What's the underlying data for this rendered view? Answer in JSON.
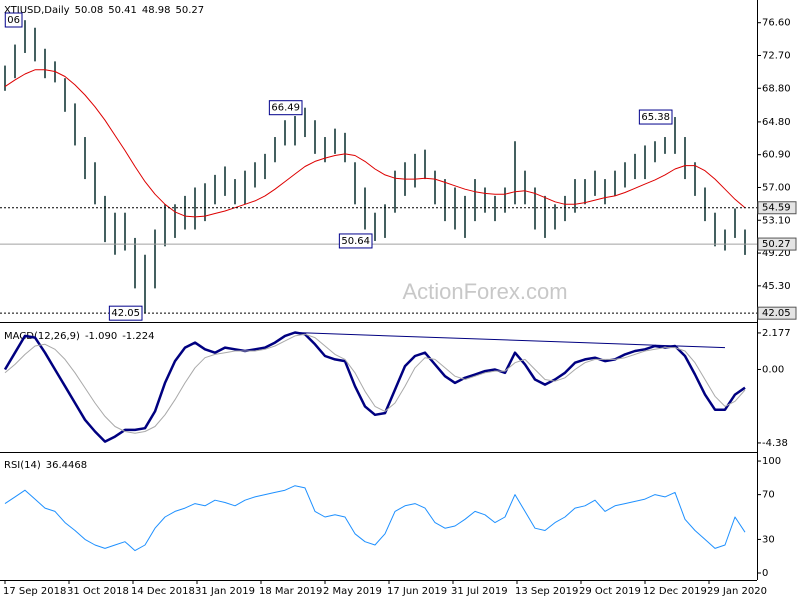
{
  "chart_data": [
    {
      "type": "ohlc",
      "title": "XTIUSD,Daily",
      "readout": [
        50.08,
        50.41,
        48.98,
        50.27
      ],
      "xlim": [
        0,
        74
      ],
      "ylim": [
        41,
        79.3
      ],
      "color": "#2f4f4f",
      "yticks": [
        {
          "value": 76.6,
          "label": "76.60"
        },
        {
          "value": 72.7,
          "label": "72.70"
        },
        {
          "value": 68.8,
          "label": "68.80"
        },
        {
          "value": 64.8,
          "label": "64.80"
        },
        {
          "value": 60.9,
          "label": "60.90"
        },
        {
          "value": 57,
          "label": "57.00"
        },
        {
          "value": 53.1,
          "label": "53.10"
        },
        {
          "value": 49.2,
          "label": "49.20"
        },
        {
          "value": 45.3,
          "label": "45.30"
        }
      ],
      "high": [
        71.5,
        74,
        76.9,
        76,
        73.5,
        72,
        70,
        67,
        63,
        60,
        56,
        54,
        54,
        51,
        49,
        52,
        55,
        55,
        56,
        57,
        57.5,
        58.5,
        59.5,
        58,
        59,
        60,
        61,
        63,
        65,
        65.5,
        66.49,
        65,
        63,
        64,
        63.5,
        60,
        57,
        54,
        55,
        59,
        60,
        61,
        61.5,
        59,
        58,
        57,
        56,
        58,
        57,
        56,
        57,
        62.5,
        59,
        57,
        56,
        55,
        56,
        58,
        58,
        59,
        58,
        59,
        60,
        61,
        62,
        62.5,
        63,
        65.38,
        63,
        60,
        57,
        54,
        52,
        54.5,
        52
      ],
      "low": [
        68.5,
        70,
        73,
        72,
        70,
        69.5,
        66,
        62,
        58,
        55,
        50.5,
        49,
        49.5,
        45,
        42.05,
        45,
        50,
        51,
        52,
        52,
        53,
        55,
        56,
        55,
        55,
        57,
        58,
        60,
        62,
        62,
        63,
        61,
        60,
        61,
        60,
        55,
        52,
        50.64,
        51,
        54,
        56,
        57,
        58,
        55,
        53,
        52,
        51,
        53,
        54,
        53,
        54,
        55,
        55,
        52,
        51,
        52,
        53,
        54,
        55,
        56,
        55,
        56,
        57,
        58,
        58,
        60,
        61,
        61,
        58,
        56,
        53,
        50,
        49.5,
        51,
        48.98
      ],
      "ma": {
        "color": "#dd0000",
        "values": [
          69,
          69.8,
          70.5,
          71,
          71,
          70.8,
          70.2,
          69.2,
          68,
          66.6,
          65,
          63.2,
          61.4,
          59.5,
          57.7,
          56.2,
          55,
          54.1,
          53.6,
          53.5,
          53.6,
          53.9,
          54.2,
          54.6,
          55,
          55.4,
          56,
          56.8,
          57.7,
          58.6,
          59.5,
          60.1,
          60.5,
          60.8,
          61,
          60.8,
          60.1,
          59.2,
          58.5,
          58.1,
          58,
          58,
          58.1,
          58,
          57.6,
          57.2,
          56.8,
          56.5,
          56.3,
          56.2,
          56.2,
          56.5,
          56.6,
          56.3,
          55.8,
          55.3,
          55,
          55,
          55.2,
          55.5,
          55.8,
          56,
          56.4,
          56.9,
          57.4,
          57.9,
          58.5,
          59.2,
          59.6,
          59.6,
          59,
          58,
          56.8,
          55.6,
          54.59
        ]
      },
      "levels": [
        {
          "value": 54.59,
          "style": "dotted"
        },
        {
          "value": 50.27,
          "style": "solid"
        },
        {
          "value": 42.05,
          "style": "dotted"
        }
      ],
      "annotations": [
        {
          "label": "06",
          "x": 2
        },
        {
          "value": 66.49,
          "x": 30
        },
        {
          "value": 50.64,
          "x": 37
        },
        {
          "value": 42.05,
          "x": 14
        },
        {
          "value": 65.38,
          "x": 67
        }
      ]
    },
    {
      "type": "line",
      "title": "MACD(12,26,9)",
      "readout": [
        {
          "value": -1.09,
          "label": "-1.090"
        },
        {
          "value": -1.224,
          "label": "-1.224"
        }
      ],
      "xlim": [
        0,
        74
      ],
      "ylim": [
        -4.92,
        2.59
      ],
      "yticks": [
        2.177,
        {
          "value": 0,
          "label": "0.00"
        },
        -4.38
      ],
      "series": [
        {
          "color": "#000080",
          "line_width": 2.5,
          "values": [
            0.0,
            1.0,
            2.0,
            1.9,
            1.0,
            0.0,
            -1.0,
            -2.0,
            -3.0,
            -3.7,
            -4.3,
            -4.0,
            -3.6,
            -3.6,
            -3.5,
            -2.5,
            -0.8,
            0.5,
            1.3,
            1.6,
            1.2,
            1.0,
            1.3,
            1.2,
            1.1,
            1.2,
            1.3,
            1.6,
            2.0,
            2.2,
            2.1,
            1.5,
            0.8,
            0.6,
            0.5,
            -1.0,
            -2.2,
            -2.7,
            -2.6,
            -1.2,
            0.2,
            0.8,
            1.0,
            0.3,
            -0.4,
            -0.8,
            -0.5,
            -0.3,
            -0.1,
            0.0,
            -0.2,
            1.0,
            0.3,
            -0.6,
            -0.9,
            -0.6,
            -0.2,
            0.4,
            0.6,
            0.7,
            0.5,
            0.6,
            0.9,
            1.1,
            1.2,
            1.4,
            1.3,
            1.4,
            0.8,
            -0.3,
            -1.5,
            -2.4,
            -2.4,
            -1.5,
            -1.09
          ]
        },
        {
          "color": "#a9a9a9",
          "line_width": 1,
          "values": [
            -0.2,
            0.3,
            0.9,
            1.4,
            1.5,
            1.2,
            0.6,
            -0.2,
            -1.1,
            -2.0,
            -2.8,
            -3.4,
            -3.7,
            -3.8,
            -3.7,
            -3.4,
            -2.7,
            -1.8,
            -0.8,
            0.1,
            0.7,
            0.9,
            1.0,
            1.1,
            1.1,
            1.1,
            1.2,
            1.4,
            1.7,
            2.0,
            2.1,
            1.9,
            1.4,
            0.9,
            0.6,
            -0.2,
            -1.3,
            -2.2,
            -2.5,
            -2.0,
            -1.0,
            0.1,
            0.7,
            0.6,
            0.1,
            -0.4,
            -0.6,
            -0.4,
            -0.2,
            -0.1,
            -0.1,
            0.4,
            0.6,
            0.0,
            -0.6,
            -0.7,
            -0.5,
            0.0,
            0.4,
            0.6,
            0.6,
            0.6,
            0.7,
            0.9,
            1.1,
            1.2,
            1.3,
            1.3,
            1.1,
            0.4,
            -0.6,
            -1.6,
            -2.2,
            -1.9,
            -1.224
          ]
        }
      ],
      "trendline": {
        "color": "#000080",
        "x": [
          29,
          72
        ],
        "values": [
          2.2,
          1.3
        ]
      }
    },
    {
      "type": "line",
      "title": "RSI(14)",
      "readout": [
        36.4468
      ],
      "xlim": [
        0,
        74
      ],
      "ylim": [
        -6.25,
        105.4
      ],
      "yticks": [
        100,
        70,
        30,
        0
      ],
      "series": [
        {
          "color": "#1e90ff",
          "line_width": 1,
          "values": [
            62,
            68,
            74,
            66,
            58,
            55,
            45,
            38,
            30,
            25,
            22,
            25,
            28,
            20,
            25,
            40,
            50,
            55,
            58,
            62,
            60,
            65,
            63,
            60,
            65,
            68,
            70,
            72,
            74,
            78,
            76,
            55,
            50,
            52,
            50,
            35,
            28,
            25,
            35,
            55,
            60,
            62,
            58,
            45,
            40,
            42,
            48,
            55,
            52,
            45,
            50,
            70,
            55,
            40,
            38,
            45,
            50,
            58,
            60,
            65,
            55,
            60,
            62,
            64,
            66,
            70,
            68,
            72,
            48,
            38,
            30,
            22,
            25,
            50,
            36.4468
          ]
        }
      ],
      "xticks": [
        {
          "value": 0,
          "label": "17 Sep 2018"
        },
        {
          "value": 6.4,
          "label": "31 Oct 2018"
        },
        {
          "value": 12.8,
          "label": "14 Dec 2018"
        },
        {
          "value": 19.2,
          "label": "31 Jan 2019"
        },
        {
          "value": 25.6,
          "label": "18 Mar 2019"
        },
        {
          "value": 32,
          "label": "2 May 2019"
        },
        {
          "value": 38.4,
          "label": "17 Jun 2019"
        },
        {
          "value": 44.8,
          "label": "31 Jul 2019"
        },
        {
          "value": 51.2,
          "label": "13 Sep 2019"
        },
        {
          "value": 57.6,
          "label": "29 Oct 2019"
        },
        {
          "value": 64,
          "label": "12 Dec 2019"
        },
        {
          "value": 70.4,
          "label": "29 Jan 2020"
        }
      ]
    }
  ],
  "watermark": "ActionForex.com"
}
